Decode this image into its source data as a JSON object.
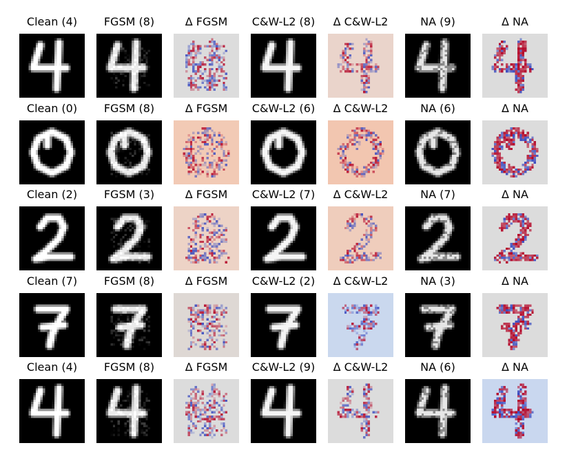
{
  "panel_titles": [
    [
      "Clean (4)",
      "FGSM (8)",
      "Δ FGSM",
      "C&W-L2 (8)",
      "Δ C&W-L2",
      "NA (9)",
      "Δ NA"
    ],
    [
      "Clean (0)",
      "FGSM (8)",
      "Δ FGSM",
      "C&W-L2 (6)",
      "Δ C&W-L2",
      "NA (6)",
      "Δ NA"
    ],
    [
      "Clean (2)",
      "FGSM (3)",
      "Δ FGSM",
      "C&W-L2 (7)",
      "Δ C&W-L2",
      "NA (7)",
      "Δ NA"
    ],
    [
      "Clean (7)",
      "FGSM (8)",
      "Δ FGSM",
      "C&W-L2 (2)",
      "Δ C&W-L2",
      "NA (3)",
      "Δ NA"
    ],
    [
      "Clean (4)",
      "FGSM (8)",
      "Δ FGSM",
      "C&W-L2 (9)",
      "Δ C&W-L2",
      "NA (6)",
      "Δ NA"
    ]
  ],
  "row_digits": [
    "4",
    "0",
    "2",
    "7",
    "4"
  ],
  "tile_kinds": [
    "clean",
    "fgsm",
    "delta-fgsm",
    "cw",
    "delta-cw",
    "na",
    "delta-na"
  ],
  "delta_backgrounds": [
    [
      "#dcdcdc",
      "#ead4cb",
      "#dcdcdc"
    ],
    [
      "#f2cab5",
      "#f2c6b0",
      "#dcdcdc"
    ],
    [
      "#edd3c6",
      "#efcdbc",
      "#dcdcdc"
    ],
    [
      "#ded8d4",
      "#cad8ee",
      "#dcdcdc"
    ],
    [
      "#dcdcdc",
      "#dcdcdc",
      "#c9d7ef"
    ]
  ],
  "colors": {
    "background": "#ffffff",
    "image_bg": "#000000",
    "diverging_neg": "#3b4cc0",
    "diverging_pos": "#b40426"
  }
}
